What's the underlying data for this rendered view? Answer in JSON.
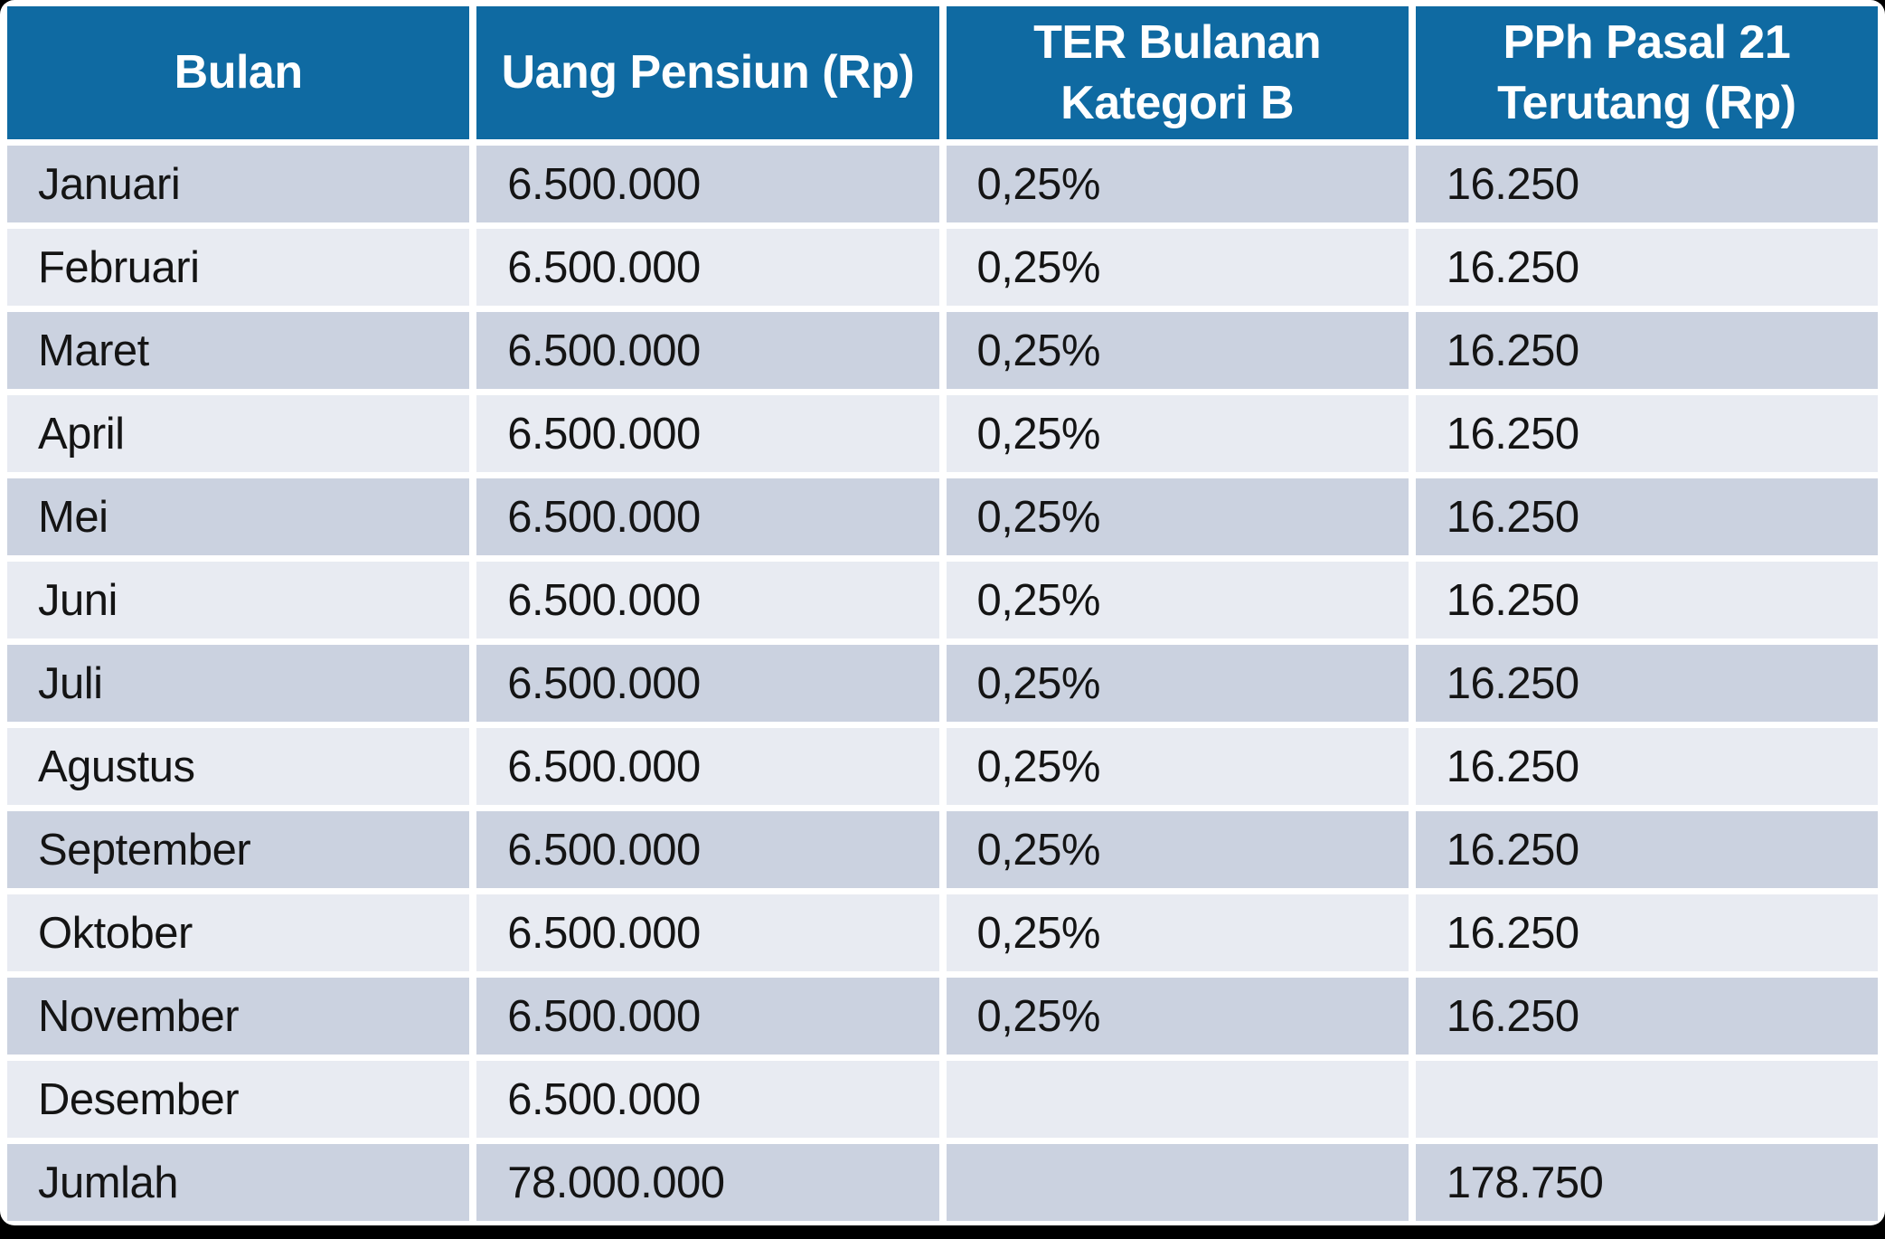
{
  "colors": {
    "header_bg": "#0f6aa2",
    "header_text": "#ffffff",
    "row_odd_bg": "#cbd2e0",
    "row_even_bg": "#e8ebf2",
    "body_text": "#141414",
    "gutter": "#ffffff",
    "frame": "#000000"
  },
  "chart_data": {
    "type": "table",
    "title": "",
    "columns": [
      "Bulan",
      "Uang Pensiun (Rp)",
      "TER Bulanan\nKategori B",
      "PPh Pasal 21\nTerutang (Rp)"
    ],
    "rows": [
      [
        "Januari",
        "6.500.000",
        "0,25%",
        "16.250"
      ],
      [
        "Februari",
        "6.500.000",
        "0,25%",
        "16.250"
      ],
      [
        "Maret",
        "6.500.000",
        "0,25%",
        "16.250"
      ],
      [
        "April",
        "6.500.000",
        "0,25%",
        "16.250"
      ],
      [
        "Mei",
        "6.500.000",
        "0,25%",
        "16.250"
      ],
      [
        "Juni",
        "6.500.000",
        "0,25%",
        "16.250"
      ],
      [
        "Juli",
        "6.500.000",
        "0,25%",
        "16.250"
      ],
      [
        "Agustus",
        "6.500.000",
        "0,25%",
        "16.250"
      ],
      [
        "September",
        "6.500.000",
        "0,25%",
        "16.250"
      ],
      [
        "Oktober",
        "6.500.000",
        "0,25%",
        "16.250"
      ],
      [
        "November",
        "6.500.000",
        "0,25%",
        "16.250"
      ],
      [
        "Desember",
        "6.500.000",
        "",
        ""
      ],
      [
        "Jumlah",
        "78.000.000",
        "",
        "178.750"
      ]
    ]
  }
}
